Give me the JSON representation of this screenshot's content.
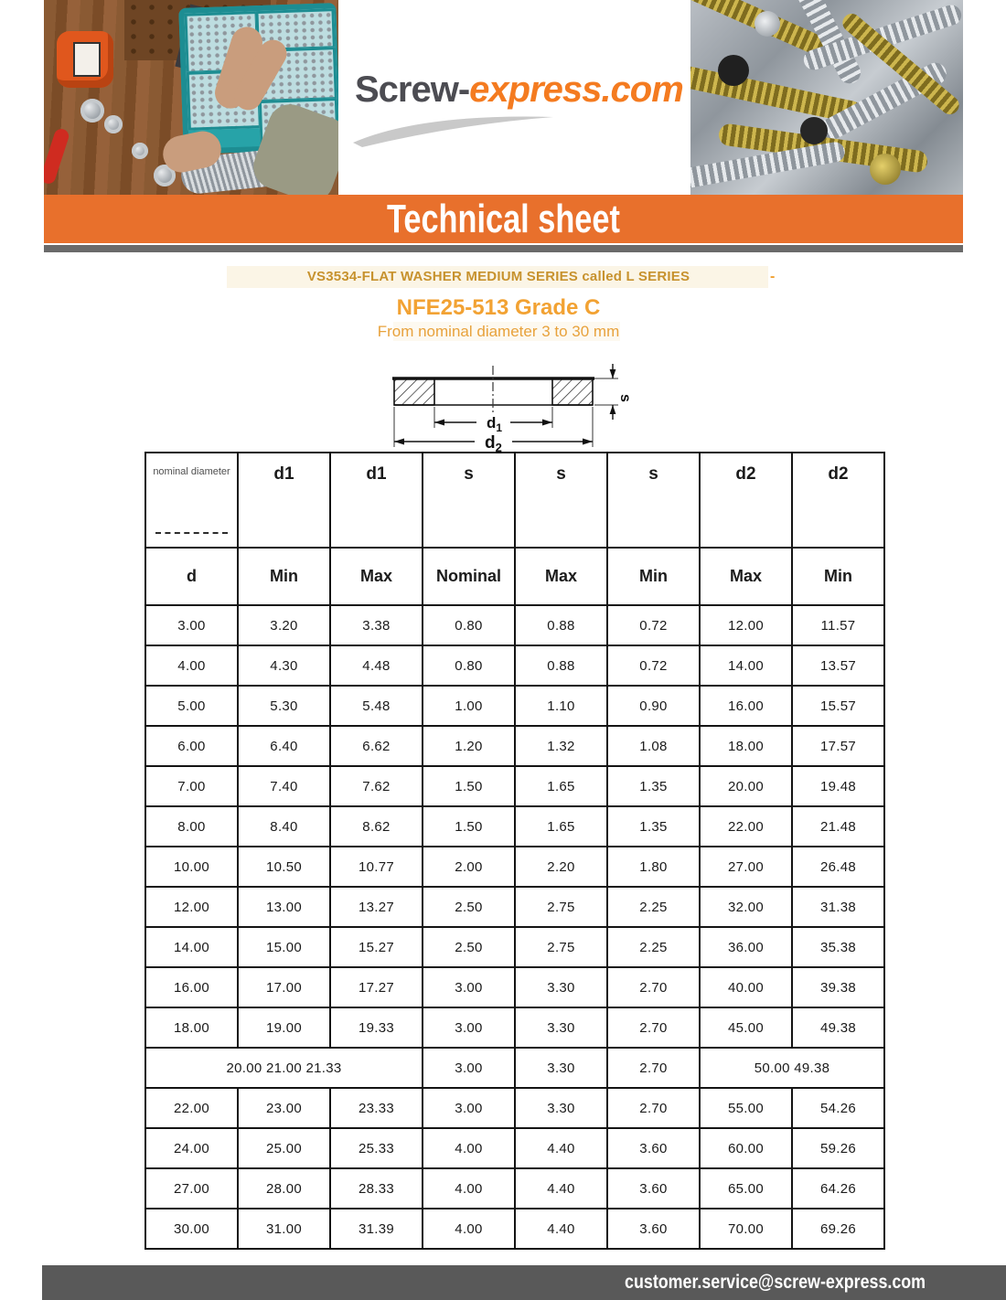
{
  "brand": {
    "logo_gray": "Screw-",
    "logo_orange": "express.com"
  },
  "banner": {
    "title": "Technical sheet"
  },
  "titles": {
    "line1": "VS3534-FLAT WASHER MEDIUM SERIES called L SERIES",
    "dash": "-",
    "line2": "NFE25-513 Grade C",
    "line3": "From nominal diameter 3 to 30 mm"
  },
  "diagram": {
    "label_d1": "d",
    "label_d1_sub": "1",
    "label_d2": "d",
    "label_d2_sub": "2",
    "label_s": "s"
  },
  "table": {
    "header_row1": [
      "nominal diameter",
      "d1",
      "d1",
      "s",
      "s",
      "s",
      "d2",
      "d2"
    ],
    "header_row2": [
      "d",
      "Min",
      "Max",
      "Nominal",
      "Max",
      "Min",
      "Max",
      "Min"
    ],
    "rows": [
      [
        "3.00",
        "3.20",
        "3.38",
        "0.80",
        "0.88",
        "0.72",
        "12.00",
        "11.57"
      ],
      [
        "4.00",
        "4.30",
        "4.48",
        "0.80",
        "0.88",
        "0.72",
        "14.00",
        "13.57"
      ],
      [
        "5.00",
        "5.30",
        "5.48",
        "1.00",
        "1.10",
        "0.90",
        "16.00",
        "15.57"
      ],
      [
        "6.00",
        "6.40",
        "6.62",
        "1.20",
        "1.32",
        "1.08",
        "18.00",
        "17.57"
      ],
      [
        "7.00",
        "7.40",
        "7.62",
        "1.50",
        "1.65",
        "1.35",
        "20.00",
        "19.48"
      ],
      [
        "8.00",
        "8.40",
        "8.62",
        "1.50",
        "1.65",
        "1.35",
        "22.00",
        "21.48"
      ],
      [
        "10.00",
        "10.50",
        "10.77",
        "2.00",
        "2.20",
        "1.80",
        "27.00",
        "26.48"
      ],
      [
        "12.00",
        "13.00",
        "13.27",
        "2.50",
        "2.75",
        "2.25",
        "32.00",
        "31.38"
      ],
      [
        "14.00",
        "15.00",
        "15.27",
        "2.50",
        "2.75",
        "2.25",
        "36.00",
        "35.38"
      ],
      [
        "16.00",
        "17.00",
        "17.27",
        "3.00",
        "3.30",
        "2.70",
        "40.00",
        "39.38"
      ],
      [
        "18.00",
        "19.00",
        "19.33",
        "3.00",
        "3.30",
        "2.70",
        "45.00",
        "49.38"
      ],
      {
        "left_merged": "20.00 21.00 21.33",
        "middle": [
          "3.00",
          "3.30",
          "2.70"
        ],
        "right_merged": "50.00 49.38"
      },
      [
        "22.00",
        "23.00",
        "23.33",
        "3.00",
        "3.30",
        "2.70",
        "55.00",
        "54.26"
      ],
      [
        "24.00",
        "25.00",
        "25.33",
        "4.00",
        "4.40",
        "3.60",
        "60.00",
        "59.26"
      ],
      [
        "27.00",
        "28.00",
        "28.33",
        "4.00",
        "4.40",
        "3.60",
        "65.00",
        "64.26"
      ],
      [
        "30.00",
        "31.00",
        "31.39",
        "4.00",
        "4.40",
        "3.60",
        "70.00",
        "69.26"
      ]
    ]
  },
  "footer": {
    "email": "customer.service@screw-express.com"
  },
  "colors": {
    "banner_orange": "#e8702c",
    "logo_orange": "#f47b20",
    "logo_gray": "#4c4c52",
    "title_gold": "#c7922e",
    "heading_orange": "#f2a233",
    "footer_gray": "#595959",
    "underbar_gray": "#6a6a6a"
  }
}
